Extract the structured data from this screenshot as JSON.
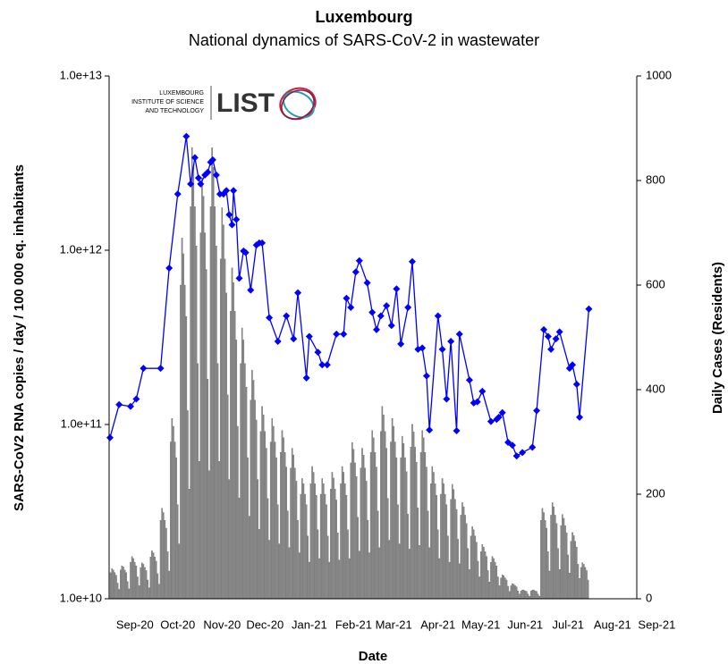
{
  "chart_data": {
    "type": "combo",
    "title": "Luxembourg",
    "subtitle": "National dynamics of SARS-CoV-2 in wastewater",
    "xlabel": "Date",
    "ylabel": "SARS-CoV2 RNA copies / day  / 100 000 eq. inhabitants",
    "y2label": "Daily Cases (Residents)",
    "annotations": [
      "LUXEMBOURG",
      "INSTITUTE OF SCIENCE",
      "AND TECHNOLOGY",
      "LIST"
    ],
    "ylog": true,
    "xlim": [
      0,
      369
    ],
    "xticks": [
      {
        "value": 18,
        "label": "Sep-20"
      },
      {
        "value": 48,
        "label": "Oct-20"
      },
      {
        "value": 79,
        "label": "Nov-20"
      },
      {
        "value": 109,
        "label": "Dec-20"
      },
      {
        "value": 140,
        "label": "Jan-21"
      },
      {
        "value": 171,
        "label": "Feb-21"
      },
      {
        "value": 199,
        "label": "Mar-21"
      },
      {
        "value": 230,
        "label": "Apr-21"
      },
      {
        "value": 260,
        "label": "May-21"
      },
      {
        "value": 291,
        "label": "Jun-21"
      },
      {
        "value": 321,
        "label": "Jul-21"
      },
      {
        "value": 352,
        "label": "Aug-21"
      },
      {
        "value": 383,
        "label": "Sep-21"
      }
    ],
    "ylim": [
      10000000000.0,
      10000000000000.0
    ],
    "yticks": [
      {
        "value": 10000000000.0,
        "label": "1.0e+10"
      },
      {
        "value": 100000000000.0,
        "label": "1.0e+11"
      },
      {
        "value": 1000000000000.0,
        "label": "1.0e+12"
      },
      {
        "value": 10000000000000.0,
        "label": "1.0e+13"
      }
    ],
    "y2lim": [
      0,
      1000
    ],
    "y2ticks": [
      0,
      200,
      400,
      600,
      800,
      1000
    ],
    "series": [
      {
        "type": "bar",
        "axis": "y2",
        "color": "#8c8c8c",
        "x": [
          1,
          2,
          3,
          4,
          5,
          6,
          7,
          8,
          9,
          10,
          11,
          12,
          13,
          14,
          15,
          16,
          17,
          18,
          19,
          20,
          21,
          22,
          23,
          24,
          25,
          26,
          27,
          28,
          29,
          30,
          31,
          32,
          33,
          34,
          35,
          36,
          37,
          38,
          39,
          40,
          41,
          42,
          43,
          44,
          45,
          46,
          47,
          48,
          49,
          50,
          51,
          52,
          53,
          54,
          55,
          56,
          57,
          58,
          59,
          60,
          61,
          62,
          63,
          64,
          65,
          66,
          67,
          68,
          69,
          70,
          71,
          72,
          73,
          74,
          75,
          76,
          77,
          78,
          79,
          80,
          81,
          82,
          83,
          84,
          85,
          86,
          87,
          88,
          89,
          90,
          91,
          92,
          93,
          94,
          95,
          96,
          97,
          98,
          99,
          100,
          101,
          102,
          103,
          104,
          105,
          106,
          107,
          108,
          109,
          110,
          111,
          112,
          113,
          114,
          115,
          116,
          117,
          118,
          119,
          120,
          121,
          122,
          123,
          124,
          125,
          126,
          127,
          128,
          129,
          130,
          131,
          132,
          133,
          134,
          135,
          136,
          137,
          138,
          139,
          140,
          141,
          142,
          143,
          144,
          145,
          146,
          147,
          148,
          149,
          150,
          151,
          152,
          153,
          154,
          155,
          156,
          157,
          158,
          159,
          160,
          161,
          162,
          163,
          164,
          165,
          166,
          167,
          168,
          169,
          170,
          171,
          172,
          173,
          174,
          175,
          176,
          177,
          178,
          179,
          180,
          181,
          182,
          183,
          184,
          185,
          186,
          187,
          188,
          189,
          190,
          191,
          192,
          193,
          194,
          195,
          196,
          197,
          198,
          199,
          200,
          201,
          202,
          203,
          204,
          205,
          206,
          207,
          208,
          209,
          210,
          211,
          212,
          213,
          214,
          215,
          216,
          217,
          218,
          219,
          220,
          221,
          222,
          223,
          224,
          225,
          226,
          227,
          228,
          229,
          230,
          231,
          232,
          233,
          234,
          235,
          236,
          237,
          238,
          239,
          240,
          241,
          242,
          243,
          244,
          245,
          246,
          247,
          248,
          249,
          250,
          251,
          252,
          253,
          254,
          255,
          256,
          257,
          258,
          259,
          260,
          261,
          262,
          263,
          264,
          265,
          266,
          267,
          268,
          269,
          270,
          271,
          272,
          273,
          274,
          275,
          276,
          277,
          278,
          279,
          280,
          281,
          282,
          283,
          284,
          285,
          286,
          287,
          288,
          289,
          290,
          291,
          292,
          293,
          294,
          295,
          296,
          297,
          298,
          299,
          300,
          301,
          302,
          303,
          304,
          305,
          306,
          307,
          308,
          309,
          310,
          311,
          312,
          313,
          314,
          315,
          316,
          317,
          318,
          319,
          320,
          321,
          322,
          323,
          324,
          325,
          326,
          327,
          328,
          329,
          330,
          331,
          332,
          333,
          334,
          335
        ],
        "values": [
          50,
          58,
          55,
          50,
          45,
          30,
          18,
          55,
          63,
          61,
          55,
          50,
          33,
          19,
          70,
          81,
          77,
          70,
          63,
          42,
          25,
          60,
          69,
          66,
          60,
          54,
          36,
          21,
          80,
          92,
          88,
          80,
          72,
          48,
          28,
          150,
          173,
          165,
          150,
          135,
          90,
          53,
          300,
          345,
          330,
          300,
          270,
          180,
          105,
          600,
          690,
          660,
          600,
          540,
          360,
          210,
          750,
          863,
          825,
          750,
          675,
          450,
          263,
          700,
          805,
          770,
          700,
          630,
          420,
          245,
          750,
          863,
          825,
          750,
          675,
          450,
          263,
          650,
          748,
          715,
          650,
          585,
          390,
          228,
          550,
          633,
          605,
          550,
          495,
          330,
          193,
          450,
          518,
          495,
          450,
          405,
          270,
          158,
          380,
          437,
          418,
          380,
          342,
          228,
          133,
          320,
          368,
          352,
          320,
          288,
          192,
          112,
          300,
          345,
          330,
          300,
          270,
          180,
          105,
          280,
          322,
          308,
          280,
          252,
          168,
          98,
          250,
          288,
          275,
          250,
          225,
          150,
          88,
          200,
          230,
          220,
          200,
          180,
          120,
          70,
          220,
          253,
          242,
          220,
          198,
          132,
          77,
          200,
          230,
          220,
          200,
          180,
          120,
          70,
          210,
          242,
          231,
          210,
          189,
          126,
          74,
          220,
          253,
          242,
          220,
          198,
          132,
          77,
          260,
          299,
          286,
          260,
          234,
          156,
          91,
          250,
          288,
          275,
          250,
          225,
          150,
          88,
          280,
          322,
          308,
          280,
          252,
          168,
          98,
          320,
          368,
          352,
          320,
          288,
          192,
          112,
          300,
          345,
          330,
          300,
          270,
          180,
          105,
          270,
          311,
          297,
          270,
          243,
          162,
          95,
          290,
          334,
          319,
          290,
          261,
          174,
          102,
          280,
          322,
          308,
          280,
          252,
          168,
          98,
          220,
          253,
          242,
          220,
          198,
          132,
          77,
          200,
          230,
          220,
          200,
          180,
          120,
          70,
          190,
          219,
          209,
          190,
          171,
          114,
          67,
          160,
          184,
          176,
          160,
          144,
          96,
          56,
          120,
          138,
          132,
          120,
          108,
          72,
          42,
          90,
          104,
          99,
          90,
          81,
          54,
          32,
          70,
          81,
          77,
          70,
          63,
          42,
          25,
          40,
          46,
          44,
          40,
          36,
          24,
          14,
          25,
          29,
          28,
          25,
          23,
          15,
          9,
          15,
          17,
          17,
          15,
          14,
          9,
          5,
          15,
          17,
          17,
          15,
          14,
          9,
          5,
          150,
          173,
          165,
          150,
          135,
          90,
          53,
          160,
          184,
          176,
          160,
          144,
          96,
          56,
          140,
          161,
          154,
          140,
          126,
          84,
          49,
          110,
          127,
          121,
          110,
          99,
          66,
          39,
          60,
          69,
          66,
          60,
          54,
          36
        ]
      },
      {
        "type": "line",
        "axis": "y",
        "color": "#0000ff",
        "x": [
          0.6,
          7,
          15,
          19,
          24,
          36,
          42,
          48,
          54,
          57,
          60,
          62.5,
          64,
          67,
          69,
          71,
          72.5,
          75,
          77.5,
          80,
          82,
          84,
          86,
          87,
          89,
          91,
          94,
          95.5,
          99,
          103,
          105,
          107,
          112,
          118,
          124,
          129,
          132,
          138,
          140,
          146,
          149,
          152.5,
          159,
          164,
          166,
          169,
          172.5,
          175,
          180.5,
          184,
          187,
          190,
          194,
          197.5,
          201,
          204,
          209,
          212,
          216,
          219,
          222,
          224,
          230,
          233,
          236,
          239,
          243,
          245,
          252,
          255,
          257.5,
          261,
          267,
          271,
          272.5,
          275,
          279,
          282,
          285,
          289,
          296,
          299,
          304,
          307,
          309,
          312.5,
          315,
          322,
          324,
          327,
          329,
          335.5
        ],
        "values": [
          84000000000.0,
          130000000000.0,
          127000000000.0,
          140000000000.0,
          210000000000.0,
          210000000000.0,
          790000000000.0,
          2100000000000.0,
          4500000000000.0,
          2400000000000.0,
          3400000000000.0,
          2600000000000.0,
          2400000000000.0,
          2700000000000.0,
          2800000000000.0,
          3200000000000.0,
          3300000000000.0,
          2700000000000.0,
          2100000000000.0,
          2100000000000.0,
          2200000000000.0,
          1600000000000.0,
          1400000000000.0,
          2200000000000.0,
          1500000000000.0,
          690000000000.0,
          990000000000.0,
          970000000000.0,
          590000000000.0,
          1070000000000.0,
          1100000000000.0,
          1100000000000.0,
          410000000000.0,
          300000000000.0,
          420000000000.0,
          310000000000.0,
          570000000000.0,
          185000000000.0,
          320000000000.0,
          260000000000.0,
          220000000000.0,
          220000000000.0,
          330000000000.0,
          330000000000.0,
          530000000000.0,
          470000000000.0,
          750000000000.0,
          870000000000.0,
          650000000000.0,
          440000000000.0,
          350000000000.0,
          420000000000.0,
          480000000000.0,
          370000000000.0,
          600000000000.0,
          290000000000.0,
          470000000000.0,
          860000000000.0,
          270000000000.0,
          275000000000.0,
          190000000000.0,
          93000000000.0,
          420000000000.0,
          270000000000.0,
          140000000000.0,
          300000000000.0,
          92000000000.0,
          330000000000.0,
          180000000000.0,
          133000000000.0,
          135000000000.0,
          155000000000.0,
          104000000000.0,
          107000000000.0,
          110000000000.0,
          117000000000.0,
          79000000000.0,
          76000000000.0,
          66000000000.0,
          69000000000.0,
          74000000000.0,
          120000000000.0,
          350000000000.0,
          320000000000.0,
          270000000000.0,
          310000000000.0,
          340000000000.0,
          210000000000.0,
          220000000000.0,
          170000000000.0,
          110000000000.0,
          460000000000.0
        ]
      }
    ]
  }
}
